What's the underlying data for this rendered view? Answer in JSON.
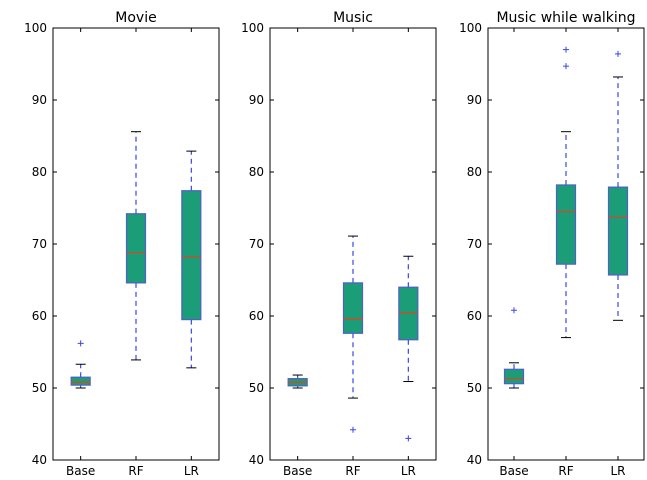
{
  "chart_data": [
    {
      "type": "box",
      "title": "Movie",
      "categories": [
        "Base",
        "RF",
        "LR"
      ],
      "ylim": [
        40,
        100
      ],
      "yticks": [
        40,
        50,
        60,
        70,
        80,
        90,
        100
      ],
      "grid": false,
      "boxes": [
        {
          "whislo": 50.0,
          "q1": 50.4,
          "med": 50.8,
          "q3": 51.5,
          "whishi": 53.3,
          "fliers": [
            56.2
          ]
        },
        {
          "whislo": 53.9,
          "q1": 64.6,
          "med": 68.8,
          "q3": 74.2,
          "whishi": 85.6,
          "fliers": []
        },
        {
          "whislo": 52.8,
          "q1": 59.5,
          "med": 68.2,
          "q3": 77.4,
          "whishi": 82.9,
          "fliers": []
        }
      ]
    },
    {
      "type": "box",
      "title": "Music",
      "categories": [
        "Base",
        "RF",
        "LR"
      ],
      "ylim": [
        40,
        100
      ],
      "yticks": [
        40,
        50,
        60,
        70,
        80,
        90,
        100
      ],
      "grid": false,
      "boxes": [
        {
          "whislo": 50.0,
          "q1": 50.3,
          "med": 50.8,
          "q3": 51.3,
          "whishi": 51.8,
          "fliers": []
        },
        {
          "whislo": 48.6,
          "q1": 57.6,
          "med": 59.6,
          "q3": 64.6,
          "whishi": 71.1,
          "fliers": [
            44.2
          ]
        },
        {
          "whislo": 50.9,
          "q1": 56.7,
          "med": 60.4,
          "q3": 64.0,
          "whishi": 68.3,
          "fliers": [
            43.0
          ]
        }
      ]
    },
    {
      "type": "box",
      "title": "Music while walking",
      "categories": [
        "Base",
        "RF",
        "LR"
      ],
      "ylim": [
        40,
        100
      ],
      "yticks": [
        40,
        50,
        60,
        70,
        80,
        90,
        100
      ],
      "grid": false,
      "boxes": [
        {
          "whislo": 50.0,
          "q1": 50.6,
          "med": 51.3,
          "q3": 52.6,
          "whishi": 53.5,
          "fliers": [
            60.8
          ]
        },
        {
          "whislo": 57.0,
          "q1": 67.2,
          "med": 74.5,
          "q3": 78.2,
          "whishi": 85.6,
          "fliers": [
            94.7,
            97.0
          ]
        },
        {
          "whislo": 59.4,
          "q1": 65.7,
          "med": 73.7,
          "q3": 77.9,
          "whishi": 93.2,
          "fliers": [
            96.4
          ]
        }
      ]
    }
  ],
  "colors": {
    "box_fill": "#1b9e77",
    "box_edge": "#4f5fc8",
    "median": "#c1502e",
    "whisker": "#3a46e6",
    "flier": "#3a46e6",
    "axis": "#000000"
  }
}
